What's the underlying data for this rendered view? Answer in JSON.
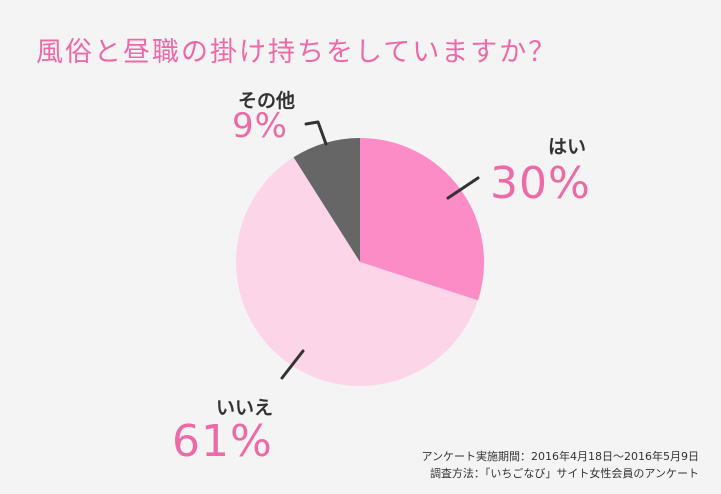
{
  "title": "風俗と昼職の掛け持ちをしていますか？",
  "chart_data": {
    "type": "pie",
    "title": "風俗と昼職の掛け持ちをしていますか？",
    "slices": [
      {
        "label": "はい",
        "value": 30,
        "value_label": "30%",
        "color": "#fb8cc5"
      },
      {
        "label": "いいえ",
        "value": 61,
        "value_label": "61%",
        "color": "#fcd5e9"
      },
      {
        "label": "その他",
        "value": 9,
        "value_label": "9%",
        "color": "#666666"
      }
    ],
    "start": "12 o'clock",
    "direction": "clockwise"
  },
  "footnote": {
    "line1": "アンケート実施期間：2016年4月18日～2016年5月9日",
    "line2": "調査方法：「いちごなび」サイト女性会員のアンケート"
  }
}
